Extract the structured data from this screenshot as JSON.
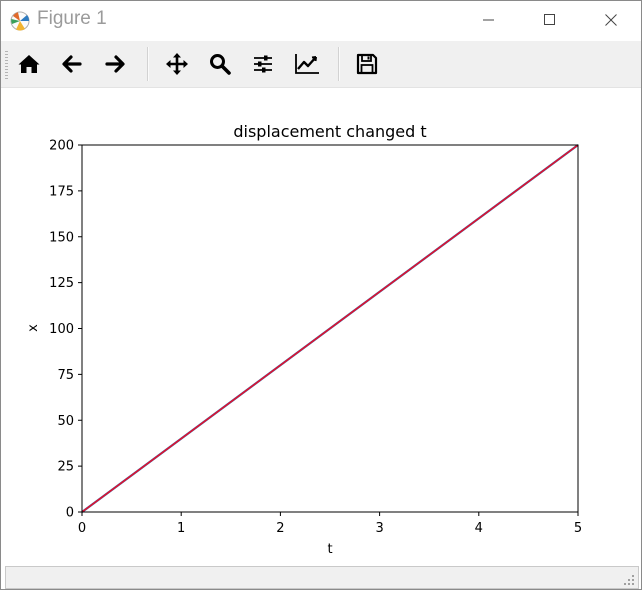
{
  "window": {
    "title": "Figure 1",
    "icons": {
      "app": "matplotlib-icon",
      "minimize": "minimize-icon",
      "maximize": "maximize-icon",
      "close": "close-icon"
    }
  },
  "toolbar": {
    "buttons": [
      {
        "name": "home",
        "icon": "home-icon"
      },
      {
        "name": "back",
        "icon": "arrow-left-icon"
      },
      {
        "name": "forward",
        "icon": "arrow-right-icon"
      },
      {
        "name": "pan",
        "icon": "move-icon"
      },
      {
        "name": "zoom",
        "icon": "magnifier-icon"
      },
      {
        "name": "configure-subplots",
        "icon": "sliders-icon"
      },
      {
        "name": "edit-axis",
        "icon": "line-chart-icon"
      },
      {
        "name": "save",
        "icon": "floppy-disk-icon"
      }
    ]
  },
  "status": {
    "text": ""
  },
  "chart_data": {
    "type": "line",
    "title": "displacement changed t",
    "xlabel": "t",
    "ylabel": "x",
    "xlim": [
      0,
      5
    ],
    "ylim": [
      0,
      200
    ],
    "xticks": [
      0,
      1,
      2,
      3,
      4,
      5
    ],
    "yticks": [
      0,
      25,
      50,
      75,
      100,
      125,
      150,
      175,
      200
    ],
    "grid": false,
    "series": [
      {
        "x": [
          0,
          5
        ],
        "y": [
          0,
          200
        ],
        "color": "#1f77b4"
      },
      {
        "x": [
          0,
          5
        ],
        "y": [
          0,
          200
        ],
        "color": "#e0102f"
      }
    ]
  }
}
